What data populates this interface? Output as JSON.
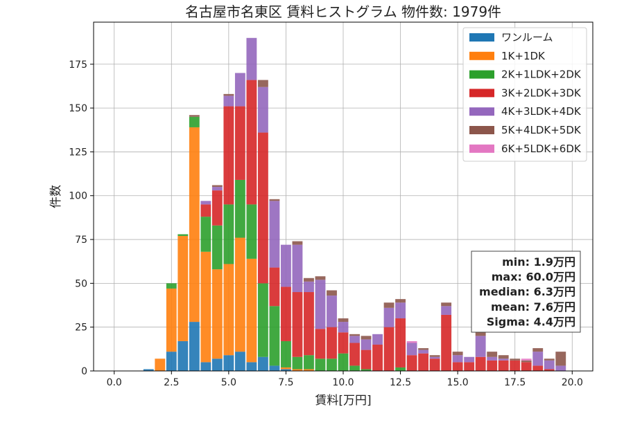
{
  "chart_data": {
    "type": "bar",
    "stacked": true,
    "title": "名古屋市名東区 賃料ヒストグラム 物件数: 1979件",
    "xlabel": "賃料[万円]",
    "ylabel": "件数",
    "xlim": [
      -0.9,
      20.9
    ],
    "ylim": [
      0,
      199
    ],
    "xticks": [
      0.0,
      2.5,
      5.0,
      7.5,
      10.0,
      12.5,
      15.0,
      17.5,
      20.0
    ],
    "xtick_labels": [
      "0.0",
      "2.5",
      "5.0",
      "7.5",
      "10.0",
      "12.5",
      "15.0",
      "17.5",
      "20.0"
    ],
    "yticks": [
      0,
      25,
      50,
      75,
      100,
      125,
      150,
      175
    ],
    "ytick_labels": [
      "0",
      "25",
      "50",
      "75",
      "100",
      "125",
      "150",
      "175"
    ],
    "grid": true,
    "legend_position": "top-right",
    "bin_width": 0.5,
    "bin_centers": [
      1.5,
      2.0,
      2.5,
      3.0,
      3.5,
      4.0,
      4.5,
      5.0,
      5.5,
      6.0,
      6.5,
      7.0,
      7.5,
      8.0,
      8.5,
      9.0,
      9.5,
      10.0,
      10.5,
      11.0,
      11.5,
      12.0,
      12.5,
      13.0,
      13.5,
      14.0,
      14.5,
      15.0,
      15.5,
      16.0,
      16.5,
      17.0,
      17.5,
      18.0,
      18.5,
      19.0,
      19.5
    ],
    "series": [
      {
        "name": "ワンルーム",
        "color": "#1f77b4",
        "values": [
          1,
          0,
          11,
          17,
          28,
          5,
          7,
          9,
          11,
          5,
          8,
          3,
          1,
          0,
          0,
          0,
          0,
          0,
          0,
          0,
          0,
          0,
          0,
          0,
          0,
          0,
          0,
          0,
          0,
          0,
          0,
          0,
          0,
          0,
          0,
          0,
          0
        ]
      },
      {
        "name": "1K+1DK",
        "color": "#ff7f0e",
        "values": [
          0,
          7,
          36,
          60,
          111,
          63,
          51,
          52,
          65,
          59,
          0,
          0,
          1,
          1,
          1,
          0,
          0,
          0,
          0,
          0,
          0,
          0,
          0,
          0,
          0,
          0,
          0,
          0,
          0,
          0,
          0,
          0,
          0,
          0,
          0,
          0,
          0
        ]
      },
      {
        "name": "2K+1LDK+2DK",
        "color": "#2ca02c",
        "values": [
          0,
          0,
          3,
          1,
          6,
          20,
          25,
          34,
          33,
          31,
          42,
          34,
          15,
          7,
          8,
          7,
          7,
          10,
          3,
          1,
          0,
          0,
          2,
          0,
          0,
          0,
          0,
          0,
          0,
          0,
          0,
          0,
          0,
          0,
          0,
          0,
          0
        ]
      },
      {
        "name": "3K+2LDK+3DK",
        "color": "#d62728",
        "values": [
          0,
          0,
          0,
          0,
          0,
          7,
          20,
          56,
          42,
          71,
          86,
          22,
          31,
          37,
          36,
          17,
          18,
          12,
          13,
          11,
          15,
          25,
          28,
          9,
          10,
          7,
          32,
          5,
          5,
          8,
          6,
          6,
          6,
          5,
          3,
          1,
          0
        ]
      },
      {
        "name": "4K+3LDK+4DK",
        "color": "#9467bd",
        "values": [
          0,
          0,
          0,
          0,
          0,
          2,
          2,
          6,
          19,
          24,
          26,
          38,
          24,
          27,
          6,
          28,
          18,
          6,
          4,
          6,
          6,
          11,
          9,
          7,
          2,
          1,
          5,
          4,
          3,
          12,
          2,
          1,
          0,
          0,
          8,
          5,
          3
        ]
      },
      {
        "name": "5K+4LDK+5DK",
        "color": "#8c564b",
        "values": [
          0,
          0,
          0,
          0,
          1,
          0,
          1,
          1,
          0,
          0,
          4,
          1,
          0,
          2,
          2,
          2,
          3,
          2,
          1,
          2,
          0,
          3,
          2,
          0,
          1,
          1,
          2,
          2,
          0,
          2,
          3,
          2,
          1,
          1,
          2,
          1,
          8
        ]
      },
      {
        "name": "6K+5LDK+6DK",
        "color": "#e377c2",
        "values": [
          0,
          0,
          0,
          0,
          0,
          0,
          0,
          0,
          0,
          0,
          0,
          0,
          0,
          0,
          0,
          0,
          0,
          0,
          0,
          0,
          0,
          0,
          0,
          1,
          0,
          0,
          0,
          0,
          0,
          0,
          0,
          0,
          0,
          1,
          0,
          0,
          0
        ]
      }
    ],
    "stats_box": [
      "min: 1.9万円",
      "max: 60.0万円",
      "median: 6.3万円",
      "mean: 7.6万円",
      "Sigma: 4.4万円"
    ]
  }
}
